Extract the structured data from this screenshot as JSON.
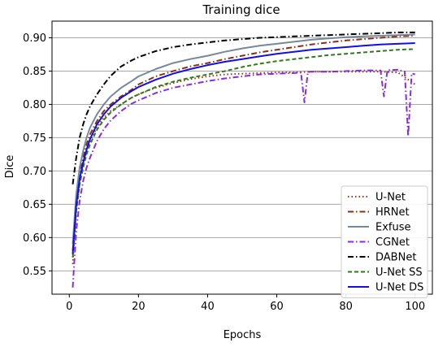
{
  "chart_data": {
    "type": "line",
    "title": "Training dice",
    "xlabel": "Epochs",
    "ylabel": "Dice",
    "xlim": [
      -5,
      105
    ],
    "ylim": [
      0.515,
      0.925
    ],
    "xticks": [
      0,
      20,
      40,
      60,
      80,
      100
    ],
    "yticks": [
      0.55,
      0.6,
      0.65,
      0.7,
      0.75,
      0.8,
      0.85,
      0.9
    ],
    "xtick_labels": [
      "0",
      "20",
      "40",
      "60",
      "80",
      "100"
    ],
    "ytick_labels": [
      "0.55",
      "0.60",
      "0.65",
      "0.70",
      "0.75",
      "0.80",
      "0.85",
      "0.90"
    ],
    "grid": "horizontal",
    "legend_position": "lower-right",
    "x": [
      1,
      2,
      3,
      4,
      5,
      6,
      8,
      10,
      12,
      15,
      18,
      20,
      25,
      30,
      35,
      40,
      45,
      50,
      55,
      60,
      65,
      70,
      75,
      80,
      85,
      90,
      95,
      100
    ],
    "series": [
      {
        "name": "U-Net",
        "color": "#a0301f",
        "style": "dotted",
        "values": [
          0.56,
          0.64,
          0.68,
          0.71,
          0.73,
          0.745,
          0.765,
          0.78,
          0.79,
          0.8,
          0.81,
          0.815,
          0.825,
          0.832,
          0.838,
          0.842,
          0.845,
          0.846,
          0.847,
          0.848,
          0.848,
          0.849,
          0.849,
          0.849,
          0.849,
          0.849,
          0.848,
          0.83
        ]
      },
      {
        "name": "HRNet",
        "color": "#8b2f16",
        "style": "dashdot",
        "values": [
          0.58,
          0.655,
          0.695,
          0.72,
          0.74,
          0.755,
          0.775,
          0.79,
          0.8,
          0.812,
          0.822,
          0.83,
          0.842,
          0.85,
          0.857,
          0.862,
          0.868,
          0.873,
          0.878,
          0.882,
          0.886,
          0.89,
          0.893,
          0.896,
          0.898,
          0.9,
          0.902,
          0.903
        ]
      },
      {
        "name": "Exfuse",
        "color": "#778899",
        "style": "solid",
        "values": [
          0.59,
          0.665,
          0.705,
          0.73,
          0.75,
          0.765,
          0.785,
          0.8,
          0.812,
          0.825,
          0.835,
          0.842,
          0.853,
          0.862,
          0.868,
          0.873,
          0.879,
          0.884,
          0.888,
          0.891,
          0.894,
          0.897,
          0.899,
          0.901,
          0.902,
          0.903,
          0.904,
          0.905
        ]
      },
      {
        "name": "CGNet",
        "color": "#8a2be2",
        "style": "dashdot",
        "values": [
          0.525,
          0.61,
          0.655,
          0.685,
          0.705,
          0.72,
          0.745,
          0.763,
          0.776,
          0.79,
          0.801,
          0.806,
          0.817,
          0.825,
          0.83,
          0.835,
          0.839,
          0.842,
          0.845,
          0.846,
          0.847,
          0.849,
          0.849,
          0.85,
          0.851,
          0.851,
          0.852,
          0.845
        ]
      },
      {
        "name": "DABNet",
        "color": "#000000",
        "style": "dashdot",
        "values": [
          0.68,
          0.72,
          0.75,
          0.77,
          0.785,
          0.797,
          0.815,
          0.83,
          0.843,
          0.857,
          0.866,
          0.871,
          0.88,
          0.886,
          0.89,
          0.893,
          0.896,
          0.898,
          0.9,
          0.901,
          0.902,
          0.903,
          0.904,
          0.905,
          0.906,
          0.907,
          0.908,
          0.908
        ]
      },
      {
        "name": "U-Net SS",
        "color": "#2e7d1a",
        "style": "dashed",
        "values": [
          0.57,
          0.64,
          0.68,
          0.705,
          0.725,
          0.74,
          0.762,
          0.777,
          0.788,
          0.8,
          0.81,
          0.815,
          0.826,
          0.834,
          0.84,
          0.845,
          0.85,
          0.856,
          0.861,
          0.865,
          0.868,
          0.871,
          0.874,
          0.876,
          0.878,
          0.88,
          0.882,
          0.883
        ]
      },
      {
        "name": "U-Net DS",
        "color": "#1010e0",
        "style": "solid",
        "values": [
          0.575,
          0.648,
          0.688,
          0.713,
          0.732,
          0.748,
          0.77,
          0.785,
          0.797,
          0.81,
          0.82,
          0.826,
          0.837,
          0.846,
          0.853,
          0.859,
          0.864,
          0.868,
          0.872,
          0.876,
          0.879,
          0.882,
          0.884,
          0.886,
          0.888,
          0.89,
          0.891,
          0.892
        ]
      }
    ],
    "cgnet_dips": [
      {
        "x": 68,
        "y": 0.803
      },
      {
        "x": 91,
        "y": 0.812
      },
      {
        "x": 98,
        "y": 0.752
      }
    ]
  }
}
